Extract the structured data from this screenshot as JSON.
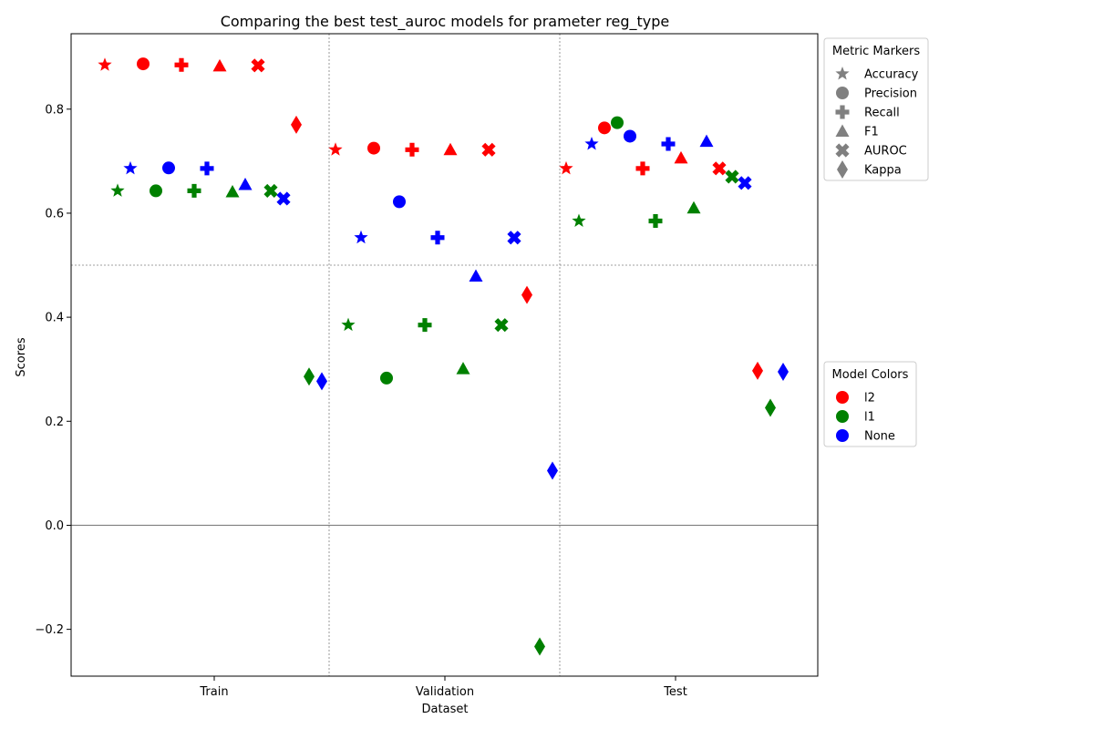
{
  "chart_data": {
    "type": "scatter",
    "title": "Comparing the best test_auroc models for prameter reg_type",
    "xlabel": "Dataset",
    "ylabel": "Scores",
    "categories": [
      "Train",
      "Validation",
      "Test"
    ],
    "ylim": [
      -0.29,
      0.945
    ],
    "yticks": [
      -0.2,
      0.0,
      0.2,
      0.4,
      0.6,
      0.8
    ],
    "ytick_labels": [
      "−0.2",
      "0.0",
      "0.2",
      "0.4",
      "0.6",
      "0.8"
    ],
    "hline_zero": true,
    "hline_mid": 0.5,
    "grid": "dashed separators between datasets",
    "metrics": [
      "Accuracy",
      "Precision",
      "Recall",
      "F1",
      "AUROC",
      "Kappa"
    ],
    "metric_markers": {
      "Accuracy": "star",
      "Precision": "circle",
      "Recall": "plus",
      "F1": "triangle",
      "AUROC": "x",
      "Kappa": "diamond"
    },
    "series": [
      {
        "name": "l2",
        "color": "#ff0000",
        "values": {
          "Train": [
            0.885,
            0.887,
            0.885,
            0.883,
            0.884,
            0.77
          ],
          "Validation": [
            0.722,
            0.725,
            0.722,
            0.722,
            0.722,
            0.443
          ],
          "Test": [
            0.686,
            0.764,
            0.686,
            0.706,
            0.686,
            0.297
          ]
        }
      },
      {
        "name": "l1",
        "color": "#008000",
        "values": {
          "Train": [
            0.643,
            0.643,
            0.643,
            0.641,
            0.643,
            0.286
          ],
          "Validation": [
            0.385,
            0.283,
            0.385,
            0.301,
            0.385,
            -0.233
          ],
          "Test": [
            0.585,
            0.774,
            0.585,
            0.61,
            0.67,
            0.226
          ]
        }
      },
      {
        "name": "None",
        "color": "#0000ff",
        "values": {
          "Train": [
            0.686,
            0.687,
            0.686,
            0.655,
            0.628,
            0.277
          ],
          "Validation": [
            0.553,
            0.622,
            0.553,
            0.479,
            0.553,
            0.105
          ],
          "Test": [
            0.733,
            0.748,
            0.733,
            0.738,
            0.658,
            0.295
          ]
        }
      }
    ],
    "legends": [
      {
        "title": "Metric Markers",
        "placement": "outside right, top",
        "entries": [
          "Accuracy",
          "Precision",
          "Recall",
          "F1",
          "AUROC",
          "Kappa"
        ]
      },
      {
        "title": "Model Colors",
        "placement": "outside right, middle",
        "entries": [
          "l2",
          "l1",
          "None"
        ]
      }
    ]
  }
}
